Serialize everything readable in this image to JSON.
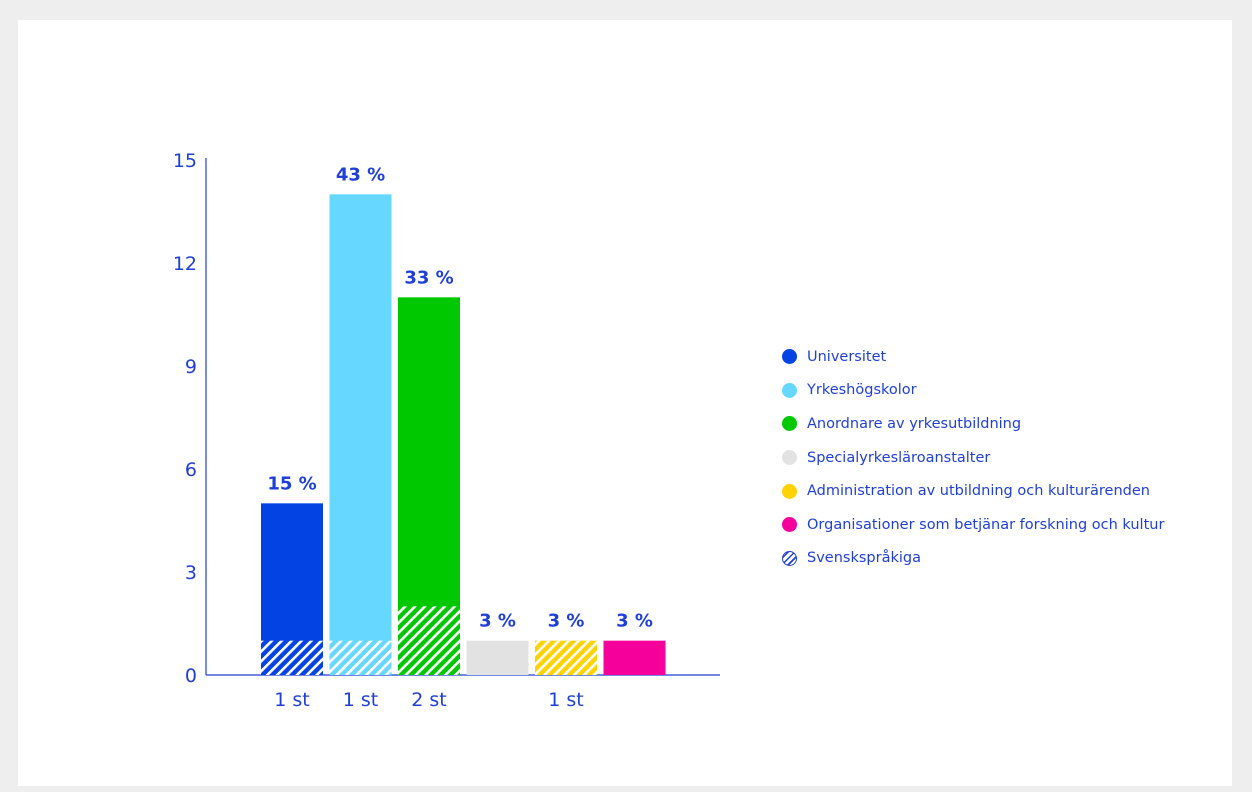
{
  "chart_data": {
    "type": "bar",
    "ylim": [
      0,
      15
    ],
    "yticks": [
      0,
      3,
      6,
      9,
      12,
      15
    ],
    "grid": false,
    "legend_position": "right",
    "bars": [
      {
        "category": "Universitet",
        "value": 5,
        "label": "15 %",
        "swedish_value": 1,
        "color": "#0443e3"
      },
      {
        "category": "Yrkeshögskolor",
        "value": 14,
        "label": "43 %",
        "swedish_value": 1,
        "color": "#66d7ff"
      },
      {
        "category": "Anordnare av yrkesutbildning",
        "value": 11,
        "label": "33 %",
        "swedish_value": 2,
        "color": "#00c800"
      },
      {
        "category": "Specialyrkesläroanstalter",
        "value": 1,
        "label": "3 %",
        "swedish_value": 0,
        "color": "#e2e2e2"
      },
      {
        "category": "Administration av utbildning och kulturärenden",
        "value": 1,
        "label": "3 %",
        "swedish_value": 1,
        "color": "#ffd200"
      },
      {
        "category": "Organisationer som betjänar forskning och kultur",
        "value": 1,
        "label": "3 %",
        "swedish_value": 0,
        "color": "#f5009b"
      }
    ],
    "swedish_count_labels": [
      "1 st",
      "1 st",
      "2 st",
      "1 st"
    ],
    "legend": [
      {
        "label": "Universitet",
        "icon": "filled-circle",
        "color": "#0443e3"
      },
      {
        "label": "Yrkeshögskolor",
        "icon": "filled-circle",
        "color": "#66d7ff"
      },
      {
        "label": "Anordnare av yrkesutbildning",
        "icon": "filled-circle",
        "color": "#00c800"
      },
      {
        "label": "Specialyrkesläroanstalter",
        "icon": "filled-circle",
        "color": "#e2e2e2"
      },
      {
        "label": "Administration av utbildning och kulturärenden",
        "icon": "filled-circle",
        "color": "#ffd200"
      },
      {
        "label": "Organisationer som betjänar forskning och kultur",
        "icon": "filled-circle",
        "color": "#f5009b"
      },
      {
        "label": "Svenskspråkiga",
        "icon": "hatched-circle",
        "color": "#1f3fd6"
      }
    ],
    "axis_color": "#1f3fd6",
    "text_color": "#1f3fd6"
  }
}
